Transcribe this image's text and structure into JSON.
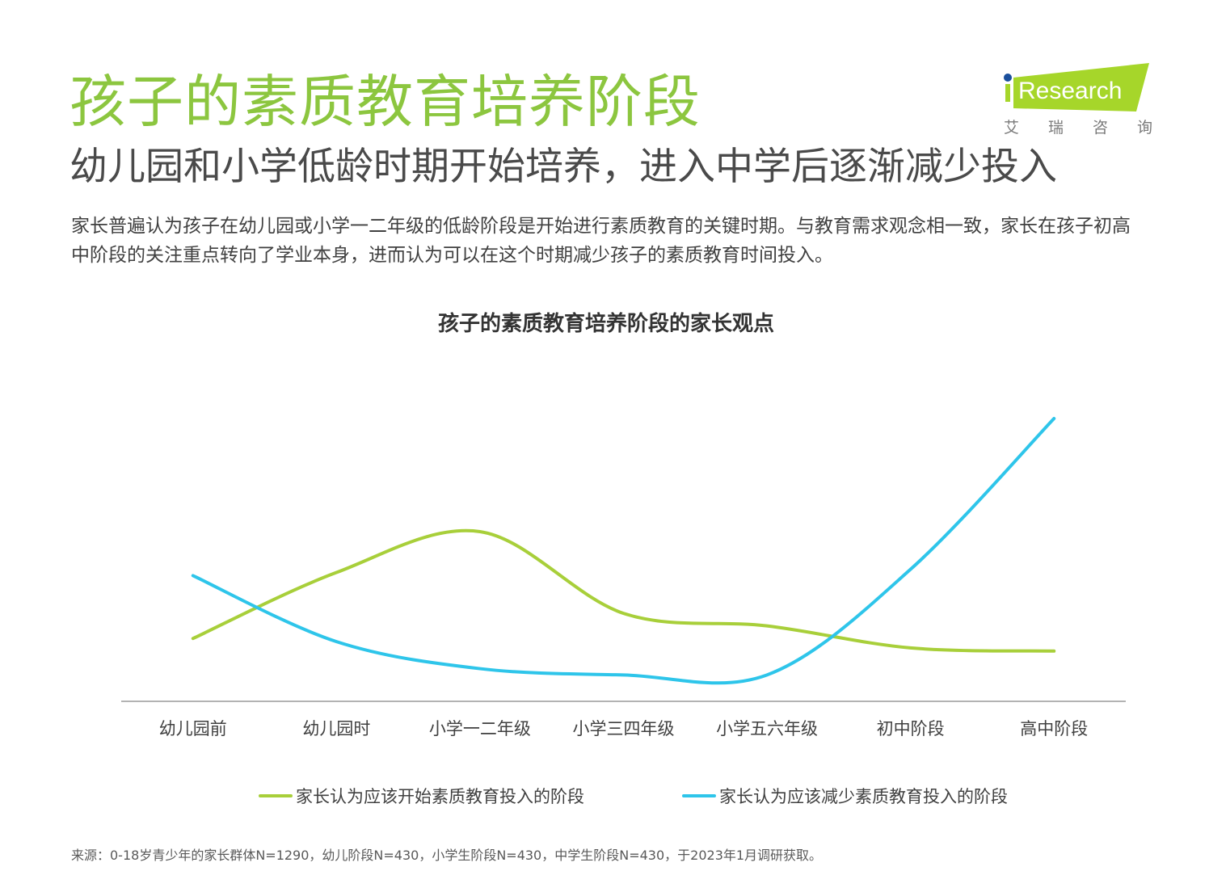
{
  "header": {
    "title": "孩子的素质教育培养阶段",
    "subtitle": "幼儿园和小学低龄时期开始培养，进入中学后逐渐减少投入",
    "description": "家长普遍认为孩子在幼儿园或小学一二年级的低龄阶段是开始进行素质教育的关键时期。与教育需求观念相一致，家长在孩子初高中阶段的关注重点转向了学业本身，进而认为可以在这个时期减少孩子的素质教育时间投入。"
  },
  "logo": {
    "brand": "iResearch",
    "chinese": "艾瑞咨询",
    "brand_color": "#a6d62a",
    "dot_color": "#1a4f9c"
  },
  "chart_data": {
    "type": "line",
    "title": "孩子的素质教育培养阶段的家长观点",
    "categories": [
      "幼儿园前",
      "幼儿园时",
      "小学一二年级",
      "小学三四年级",
      "小学五六年级",
      "初中阶段",
      "高中阶段"
    ],
    "series": [
      {
        "name": "家长认为应该开始素质教育投入的阶段",
        "color": "#a8cf3a",
        "values": [
          10,
          20.5,
          27,
          14,
          12,
          8.5,
          8
        ]
      },
      {
        "name": "家长认为应该减少素质教育投入的阶段",
        "color": "#2ec5ea",
        "values": [
          20,
          9.5,
          5.2,
          4.2,
          4.2,
          21,
          45
        ]
      }
    ],
    "ylim": [
      0,
      45
    ],
    "smooth": true,
    "grid": false,
    "y_axis_visible": false,
    "legend_position": "bottom"
  },
  "footer": {
    "source": "来源：0-18岁青少年的家长群体N=1290，幼儿阶段N=430，小学生阶段N=430，中学生阶段N=430，于2023年1月调研获取。"
  }
}
